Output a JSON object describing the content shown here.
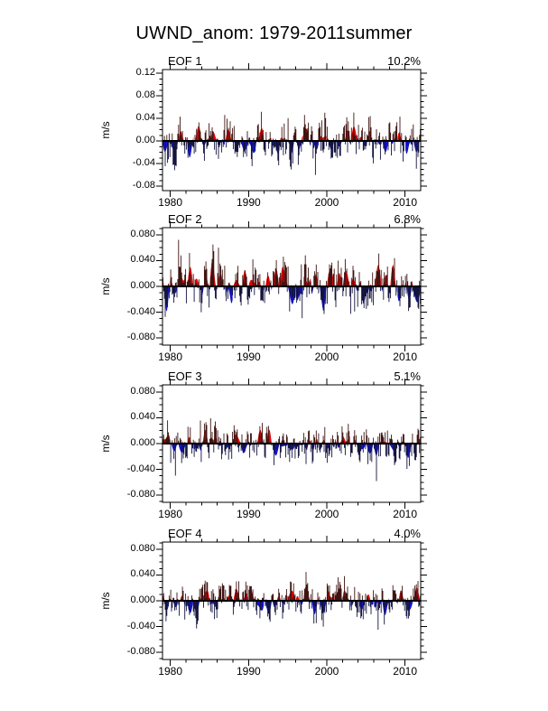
{
  "title": "UWND_anom: 1979-2011summer",
  "ylabel": "m/s",
  "chart_data": {
    "type": "bar",
    "title": "UWND_anom: 1979-2011summer",
    "xlabel": "",
    "ylabel": "m/s",
    "x_range": [
      1979,
      2012
    ],
    "x_major_ticks": [
      1980,
      1990,
      2000,
      2010
    ],
    "x_tick_labels": [
      "1980",
      "1990",
      "2000",
      "2010"
    ],
    "x_minor_step": 2,
    "years": 33,
    "points_per_year": 10,
    "colors": {
      "positive_fill": "#e60000",
      "negative_fill": "#1212cc",
      "positive_bar": "#3d1412",
      "negative_bar": "#14143d",
      "axis": "#000000",
      "zero_line": "#000000",
      "background": "#ffffff"
    },
    "panels": [
      {
        "label": "EOF 1",
        "percent": "10.2%",
        "yticks": [
          0.12,
          0.08,
          0.04,
          0,
          -0.04,
          -0.08
        ],
        "ytick_labels": [
          "0.12",
          "0.08",
          "0.04",
          "0.00",
          "-0.04",
          "-0.08"
        ],
        "ylim": [
          -0.088,
          0.1264
        ],
        "y_minor_step": 0.01,
        "seed": 101,
        "smooth_amp": 0.016,
        "bar_sigma": 0.03,
        "spike_prob": 0.07,
        "spike_amp": 0.048,
        "max_abs": 0.094
      },
      {
        "label": "EOF 2",
        "percent": "6.8%",
        "yticks": [
          0.08,
          0.04,
          0,
          -0.04,
          -0.08
        ],
        "ytick_labels": [
          "0.080",
          "0.040",
          "0.000",
          "-0.040",
          "-0.080"
        ],
        "ylim": [
          -0.0911,
          0.0911
        ],
        "y_minor_step": 0.01,
        "seed": 202,
        "smooth_amp": 0.021,
        "bar_sigma": 0.026,
        "spike_prob": 0.06,
        "spike_amp": 0.042,
        "max_abs": 0.08
      },
      {
        "label": "EOF 3",
        "percent": "5.1%",
        "yticks": [
          0.08,
          0.04,
          0,
          -0.04,
          -0.08
        ],
        "ytick_labels": [
          "0.080",
          "0.040",
          "0.000",
          "-0.040",
          "-0.080"
        ],
        "ylim": [
          -0.0911,
          0.0911
        ],
        "y_minor_step": 0.01,
        "seed": 303,
        "smooth_amp": 0.012,
        "bar_sigma": 0.023,
        "spike_prob": 0.06,
        "spike_amp": 0.036,
        "max_abs": 0.066
      },
      {
        "label": "EOF 4",
        "percent": "4.0%",
        "yticks": [
          0.08,
          0.04,
          0,
          -0.04,
          -0.08
        ],
        "ytick_labels": [
          "0.080",
          "0.040",
          "0.000",
          "-0.040",
          "-0.080"
        ],
        "ylim": [
          -0.0911,
          0.0911
        ],
        "y_minor_step": 0.01,
        "seed": 404,
        "smooth_amp": 0.013,
        "bar_sigma": 0.022,
        "spike_prob": 0.06,
        "spike_amp": 0.036,
        "max_abs": 0.068
      }
    ]
  }
}
